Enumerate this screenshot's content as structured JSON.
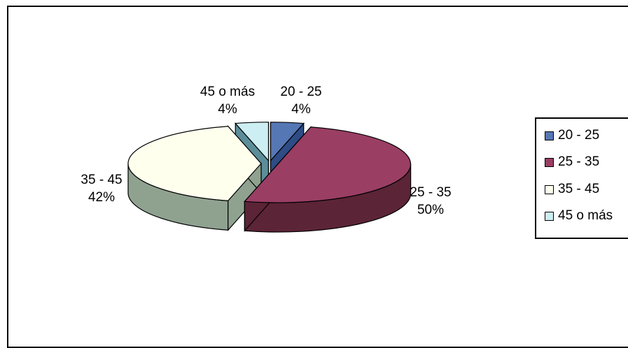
{
  "chart_data": {
    "type": "pie",
    "title": "",
    "categories": [
      "20 - 25",
      "25 - 35",
      "35 - 45",
      "45 o más"
    ],
    "values": [
      4,
      50,
      42,
      4
    ],
    "data_labels": [
      {
        "category": "20 - 25",
        "percent": "4%"
      },
      {
        "category": "25 - 35",
        "percent": "50%"
      },
      {
        "category": "35 - 45",
        "percent": "42%"
      },
      {
        "category": "45 o más",
        "percent": "4%"
      }
    ],
    "colors": [
      "#5577b4",
      "#9a3e64",
      "#ffffee",
      "#cdeff4"
    ],
    "side_colors": [
      "#2e4c85",
      "#5c2437",
      "#8fa290",
      "#5c8e9a"
    ],
    "style": "3d-exploded",
    "legend": {
      "position": "right",
      "entries": [
        "20 - 25",
        "25 - 35",
        "35 - 45",
        "45 o más"
      ]
    }
  }
}
